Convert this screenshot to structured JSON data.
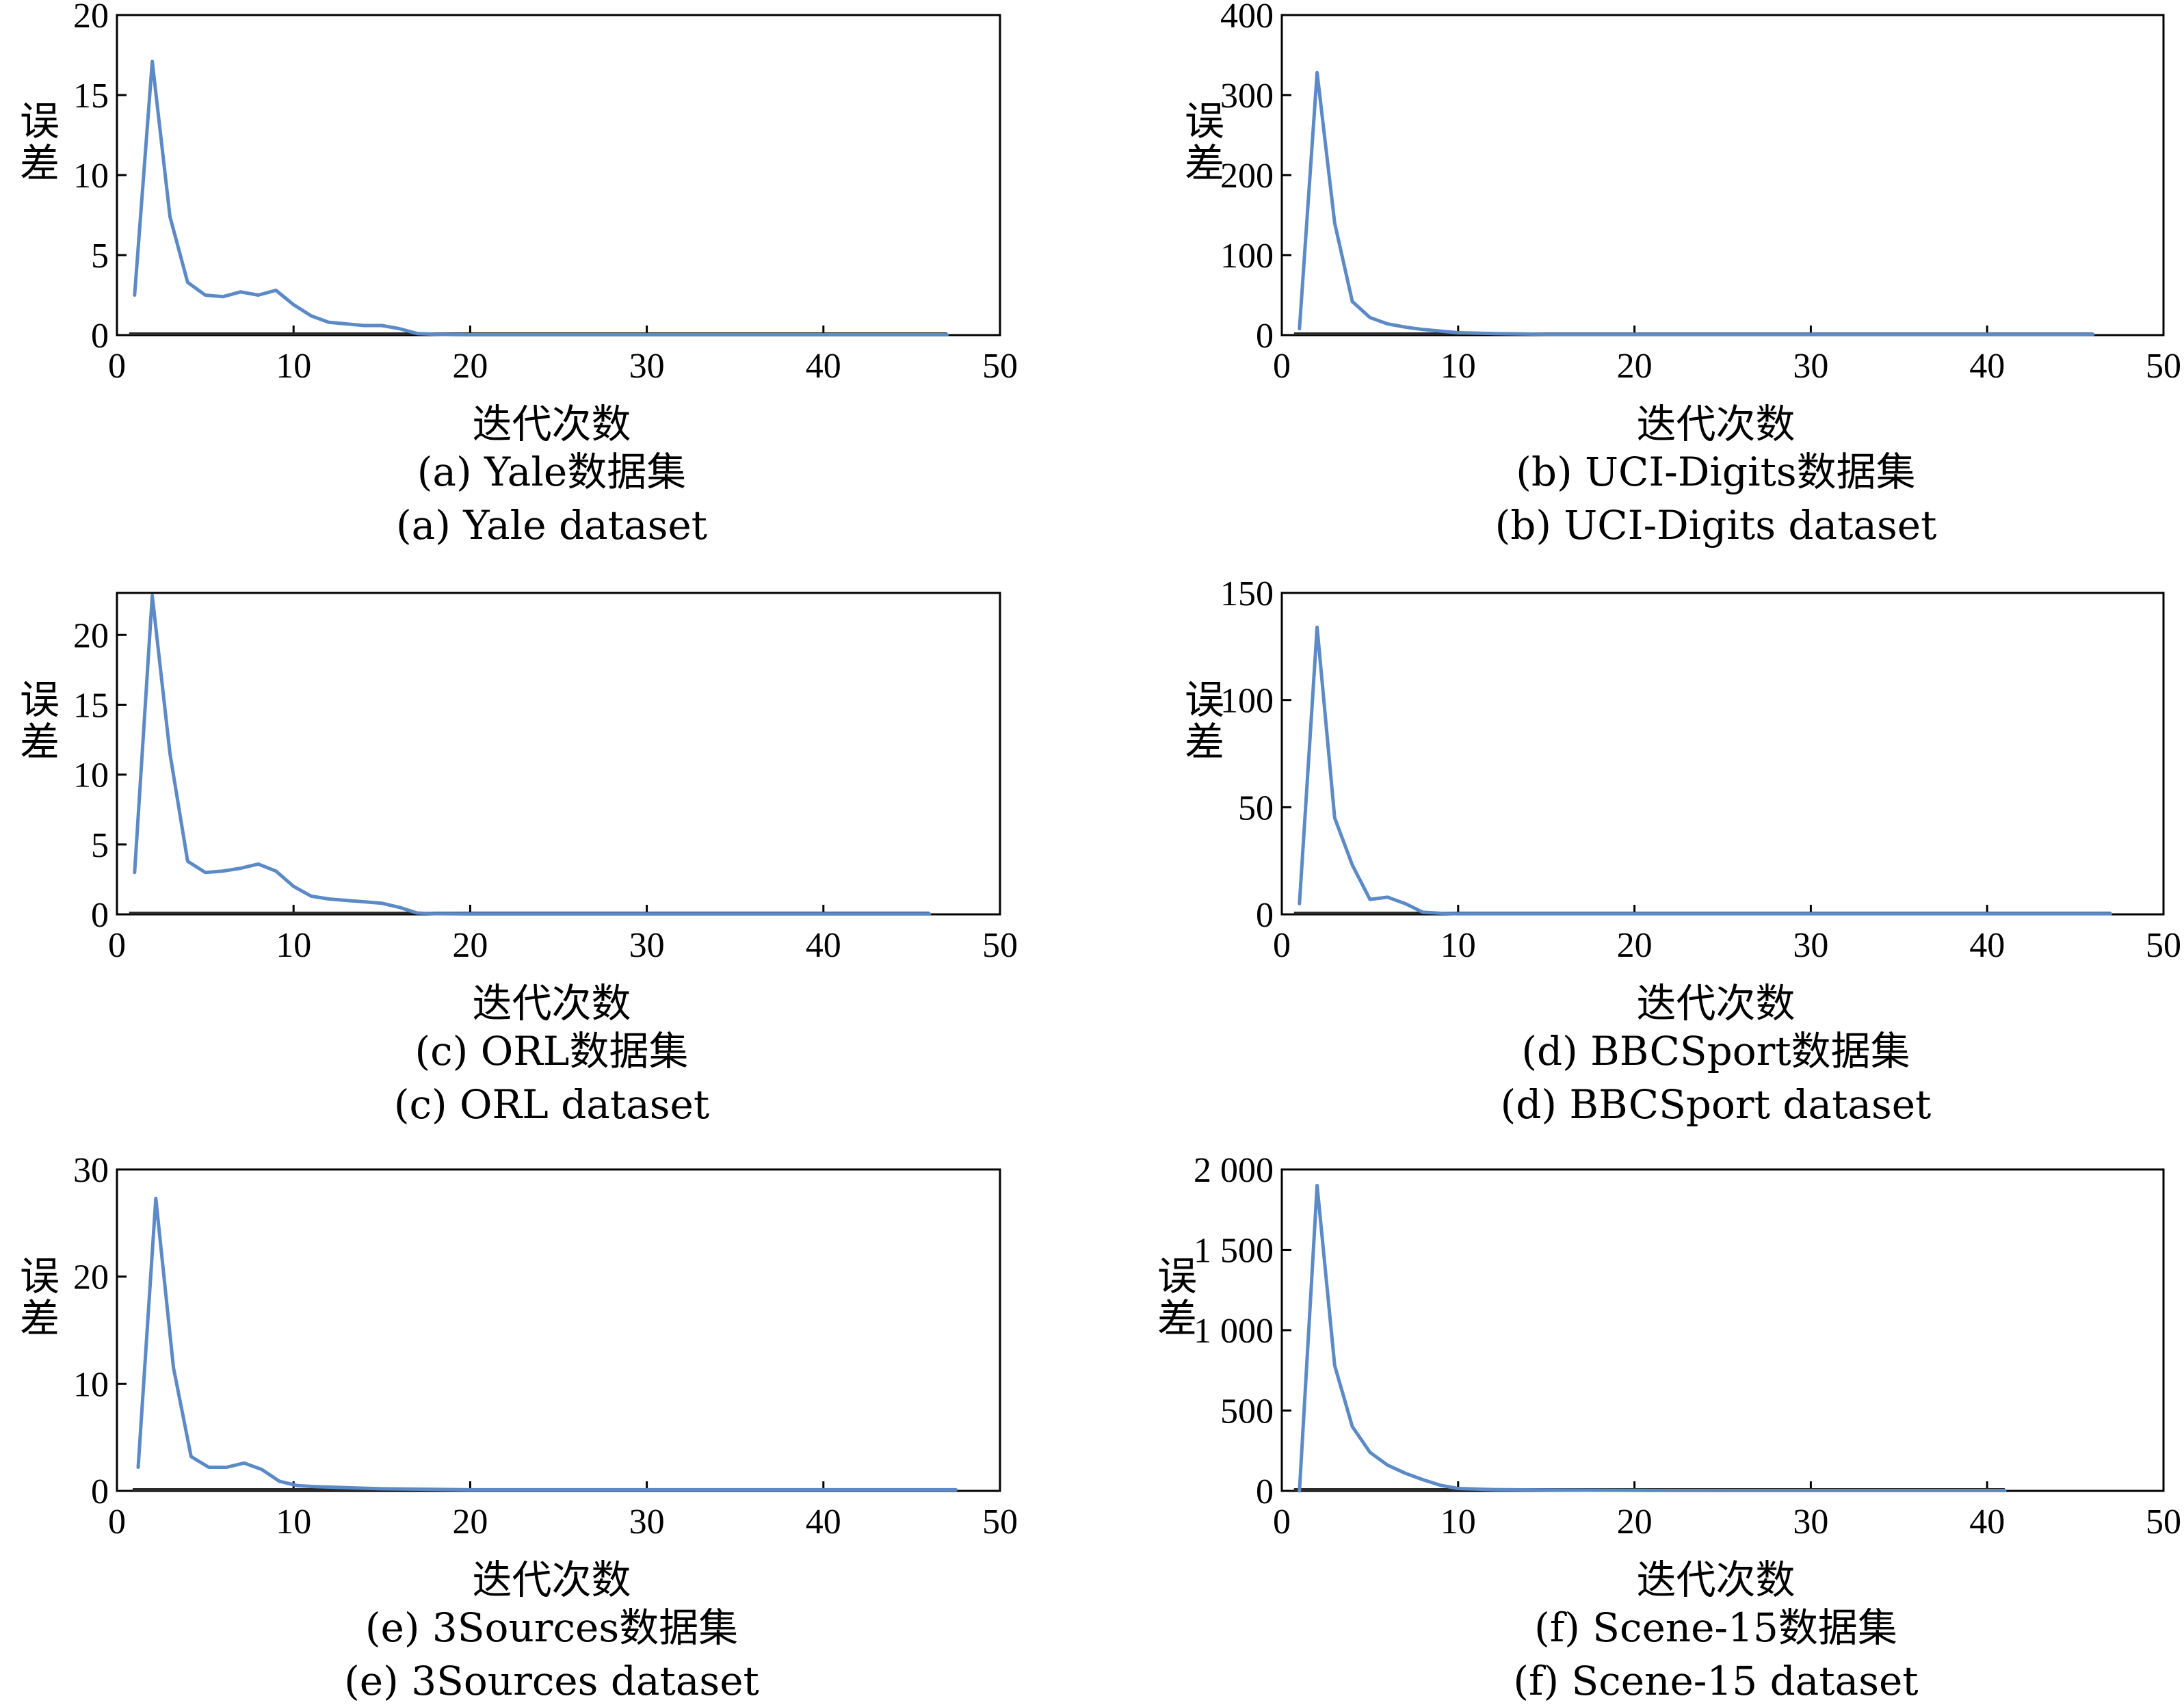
{
  "figure": {
    "line_color": "#5b8ac7",
    "axis_color": "#000000"
  },
  "chart_data": [
    {
      "type": "line",
      "xlabel": "迭代次数",
      "ylabel": "误差",
      "caption_zh": "(a) Yale数据集",
      "caption_en": "(a) Yale dataset",
      "xlim": [
        0,
        50
      ],
      "ylim": [
        0,
        20
      ],
      "xticks": [
        0,
        10,
        20,
        30,
        40,
        50
      ],
      "xtick_labels": [
        "0",
        "10",
        "20",
        "30",
        "40",
        "50"
      ],
      "yticks": [
        0,
        5,
        10,
        15,
        20
      ],
      "ytick_labels": [
        "0",
        "5",
        "10",
        "15",
        "20"
      ],
      "x": [
        1,
        2,
        3,
        4,
        5,
        6,
        7,
        8,
        9,
        10,
        11,
        12,
        13,
        14,
        15,
        16,
        17,
        18,
        19,
        20,
        25,
        30,
        35,
        40,
        47
      ],
      "y": [
        2.5,
        17.1,
        7.4,
        3.3,
        2.5,
        2.4,
        2.7,
        2.5,
        2.8,
        1.9,
        1.2,
        0.8,
        0.7,
        0.6,
        0.6,
        0.4,
        0.1,
        0.05,
        0.03,
        0.02,
        0.02,
        0.02,
        0.02,
        0.02,
        0.02
      ]
    },
    {
      "type": "line",
      "xlabel": "迭代次数",
      "ylabel": "误差",
      "caption_zh": "(b) UCI-Digits数据集",
      "caption_en": "(b) UCI-Digits dataset",
      "xlim": [
        0,
        50
      ],
      "ylim": [
        0,
        400
      ],
      "xticks": [
        0,
        10,
        20,
        30,
        40,
        50
      ],
      "xtick_labels": [
        "0",
        "10",
        "20",
        "30",
        "40",
        "50"
      ],
      "yticks": [
        0,
        100,
        200,
        300,
        400
      ],
      "ytick_labels": [
        "0",
        "100",
        "200",
        "300",
        "400"
      ],
      "x": [
        1,
        2,
        3,
        4,
        5,
        6,
        7,
        8,
        9,
        10,
        12,
        15,
        20,
        25,
        30,
        35,
        40,
        46
      ],
      "y": [
        8,
        328,
        140,
        42,
        22,
        14,
        10,
        7,
        5,
        3,
        2,
        1,
        1,
        1,
        1,
        1,
        1,
        1
      ]
    },
    {
      "type": "line",
      "xlabel": "迭代次数",
      "ylabel": "误差",
      "caption_zh": "(c) ORL数据集",
      "caption_en": "(c) ORL dataset",
      "xlim": [
        0,
        50
      ],
      "ylim": [
        0,
        23
      ],
      "xticks": [
        0,
        10,
        20,
        30,
        40,
        50
      ],
      "xtick_labels": [
        "0",
        "10",
        "20",
        "30",
        "40",
        "50"
      ],
      "yticks": [
        0,
        5,
        10,
        15,
        20
      ],
      "ytick_labels": [
        "0",
        "5",
        "10",
        "15",
        "20"
      ],
      "x": [
        1,
        2,
        3,
        4,
        5,
        6,
        7,
        8,
        9,
        10,
        11,
        12,
        13,
        14,
        15,
        16,
        17,
        18,
        20,
        25,
        30,
        35,
        40,
        46
      ],
      "y": [
        3,
        22.8,
        11.5,
        3.8,
        3.0,
        3.1,
        3.3,
        3.6,
        3.1,
        2.0,
        1.3,
        1.1,
        1.0,
        0.9,
        0.8,
        0.5,
        0.1,
        0.05,
        0.03,
        0.03,
        0.03,
        0.03,
        0.03,
        0.03
      ]
    },
    {
      "type": "line",
      "xlabel": "迭代次数",
      "ylabel": "误差",
      "caption_zh": "(d) BBCSport数据集",
      "caption_en": "(d) BBCSport dataset",
      "xlim": [
        0,
        50
      ],
      "ylim": [
        0,
        150
      ],
      "xticks": [
        0,
        10,
        20,
        30,
        40,
        50
      ],
      "xtick_labels": [
        "0",
        "10",
        "20",
        "30",
        "40",
        "50"
      ],
      "yticks": [
        0,
        50,
        100,
        150
      ],
      "ytick_labels": [
        "0",
        "50",
        "100",
        "150"
      ],
      "x": [
        1,
        2,
        3,
        4,
        5,
        6,
        7,
        8,
        9,
        10,
        15,
        20,
        25,
        30,
        35,
        40,
        47
      ],
      "y": [
        5,
        134,
        45,
        23,
        7,
        8,
        5,
        1,
        0.5,
        0.3,
        0.3,
        0.3,
        0.3,
        0.3,
        0.3,
        0.3,
        0.3
      ]
    },
    {
      "type": "line",
      "xlabel": "迭代次数",
      "ylabel": "误差",
      "caption_zh": "(e) 3Sources数据集",
      "caption_en": "(e) 3Sources dataset",
      "xlim": [
        0,
        50
      ],
      "ylim": [
        0,
        30
      ],
      "xticks": [
        0,
        10,
        20,
        30,
        40,
        50
      ],
      "xtick_labels": [
        "0",
        "10",
        "20",
        "30",
        "40",
        "50"
      ],
      "yticks": [
        0,
        10,
        20,
        30
      ],
      "ytick_labels": [
        "0",
        "10",
        "20",
        "30"
      ],
      "x": [
        1.2,
        2.2,
        3.2,
        4.2,
        5.2,
        6.2,
        7.2,
        8.2,
        9.2,
        10.2,
        11.2,
        13,
        15,
        20,
        25,
        30,
        35,
        40,
        47.5
      ],
      "y": [
        2.2,
        27.3,
        11.5,
        3.2,
        2.2,
        2.2,
        2.6,
        2.0,
        0.9,
        0.5,
        0.4,
        0.3,
        0.2,
        0.1,
        0.1,
        0.1,
        0.1,
        0.1,
        0.1
      ]
    },
    {
      "type": "line",
      "xlabel": "迭代次数",
      "ylabel": "误差",
      "caption_zh": "(f) Scene-15数据集",
      "caption_en": "(f) Scene-15 dataset",
      "xlim": [
        0,
        50
      ],
      "ylim": [
        0,
        2000
      ],
      "xticks": [
        0,
        10,
        20,
        30,
        40,
        50
      ],
      "xtick_labels": [
        "0",
        "10",
        "20",
        "30",
        "40",
        "50"
      ],
      "yticks": [
        0,
        500,
        1000,
        1500,
        2000
      ],
      "ytick_labels": [
        "0",
        "500",
        "1 000",
        "1 500",
        "2 000"
      ],
      "x": [
        1,
        2,
        3,
        4,
        5,
        6,
        7,
        8,
        9,
        10,
        12,
        15,
        20,
        25,
        30,
        35,
        41
      ],
      "y": [
        0,
        1900,
        780,
        400,
        240,
        160,
        110,
        70,
        35,
        15,
        8,
        5,
        3,
        2,
        2,
        2,
        2
      ]
    }
  ]
}
